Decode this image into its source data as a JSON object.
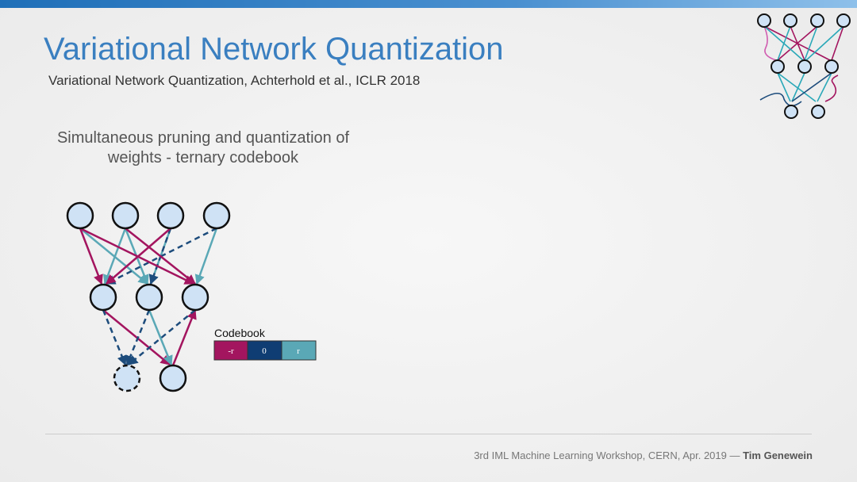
{
  "header": {
    "title": "Variational Network Quantization",
    "subtitle": "Variational Network Quantization, Achterhold et al., ICLR 2018"
  },
  "body": {
    "lines": [
      "Simultaneous pruning and quantization of",
      "weights - ternary codebook"
    ]
  },
  "codebook": {
    "label": "Codebook",
    "cells": [
      "-r",
      "0",
      "r"
    ]
  },
  "footer": {
    "text": "3rd IML Machine Learning Workshop, CERN, Apr. 2019 — ",
    "author": "Tim Genewein"
  }
}
